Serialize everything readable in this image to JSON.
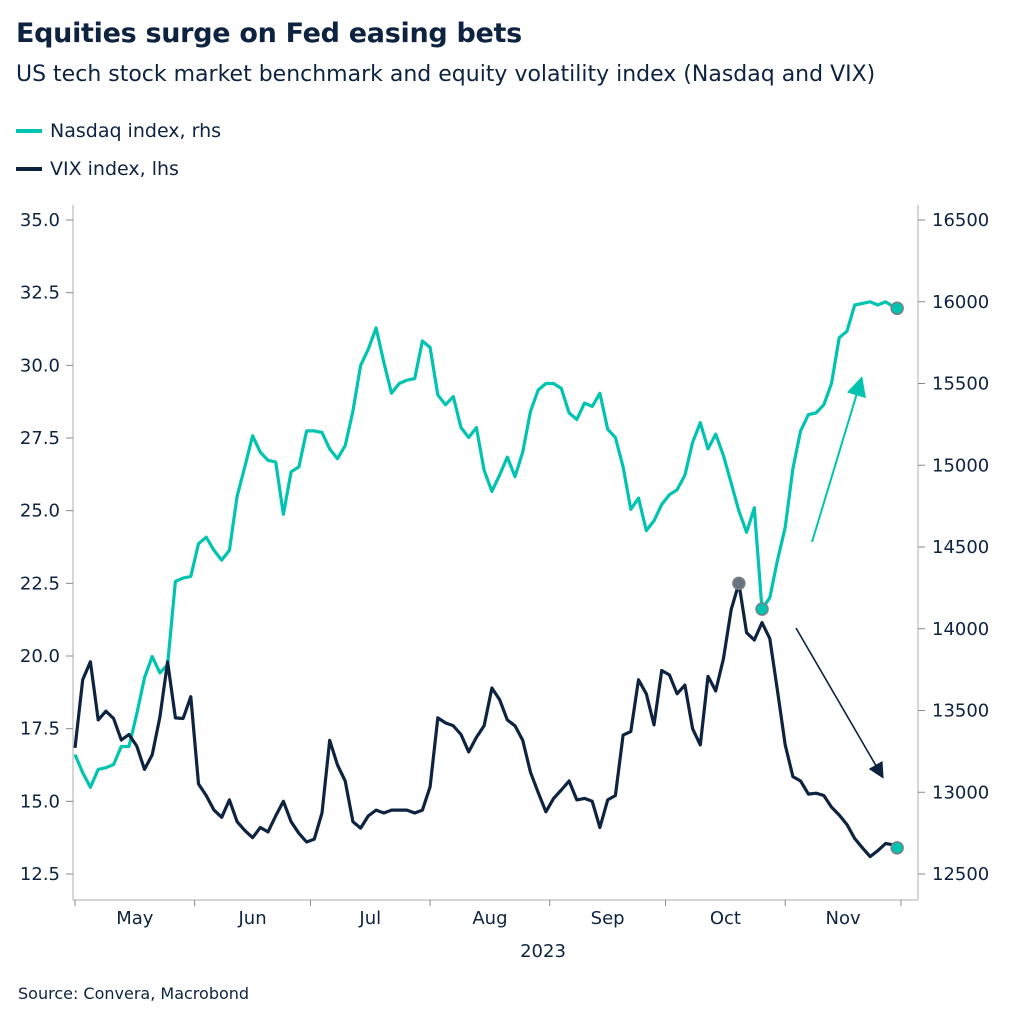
{
  "title": "Equities surge on Fed easing bets",
  "subtitle": "US tech stock market benchmark and equity volatility index (Nasdaq and VIX)",
  "source": "Source: Convera, Macrobond",
  "chart_data": {
    "type": "line",
    "title": "Equities surge on Fed easing bets",
    "subtitle": "US tech stock market benchmark and equity volatility index (Nasdaq and VIX)",
    "legend_position": "top-left",
    "grid": false,
    "x_range": [
      "2023-05-01",
      "2023-12-01"
    ],
    "x_tick_labels": [
      "May",
      "Jun",
      "Jul",
      "Aug",
      "Sep",
      "Oct",
      "Nov"
    ],
    "x_year_label": "2023",
    "left_axis": {
      "ylim": [
        12.5,
        35.0
      ],
      "ticks": [
        "12.5",
        "15.0",
        "17.5",
        "20.0",
        "22.5",
        "25.0",
        "27.5",
        "30.0",
        "32.5",
        "35.0"
      ]
    },
    "right_axis": {
      "ylim": [
        12500,
        16500
      ],
      "ticks": [
        "12500",
        "13000",
        "13500",
        "14000",
        "14500",
        "15000",
        "15500",
        "16000",
        "16500"
      ]
    },
    "x": [
      "2023-05-01",
      "2023-05-03",
      "2023-05-05",
      "2023-05-07",
      "2023-05-09",
      "2023-05-11",
      "2023-05-13",
      "2023-05-15",
      "2023-05-17",
      "2023-05-19",
      "2023-05-21",
      "2023-05-23",
      "2023-05-25",
      "2023-05-27",
      "2023-05-29",
      "2023-05-31",
      "2023-06-02",
      "2023-06-04",
      "2023-06-06",
      "2023-06-08",
      "2023-06-10",
      "2023-06-12",
      "2023-06-14",
      "2023-06-16",
      "2023-06-18",
      "2023-06-20",
      "2023-06-22",
      "2023-06-24",
      "2023-06-26",
      "2023-06-28",
      "2023-06-30",
      "2023-07-02",
      "2023-07-04",
      "2023-07-06",
      "2023-07-08",
      "2023-07-10",
      "2023-07-12",
      "2023-07-14",
      "2023-07-16",
      "2023-07-18",
      "2023-07-20",
      "2023-07-22",
      "2023-07-24",
      "2023-07-26",
      "2023-07-28",
      "2023-07-30",
      "2023-08-01",
      "2023-08-03",
      "2023-08-05",
      "2023-08-07",
      "2023-08-09",
      "2023-08-11",
      "2023-08-13",
      "2023-08-15",
      "2023-08-17",
      "2023-08-19",
      "2023-08-21",
      "2023-08-23",
      "2023-08-25",
      "2023-08-27",
      "2023-08-29",
      "2023-08-31",
      "2023-09-02",
      "2023-09-04",
      "2023-09-06",
      "2023-09-08",
      "2023-09-10",
      "2023-09-12",
      "2023-09-14",
      "2023-09-16",
      "2023-09-18",
      "2023-09-20",
      "2023-09-22",
      "2023-09-24",
      "2023-09-26",
      "2023-09-28",
      "2023-09-30",
      "2023-10-02",
      "2023-10-04",
      "2023-10-06",
      "2023-10-08",
      "2023-10-10",
      "2023-10-12",
      "2023-10-14",
      "2023-10-16",
      "2023-10-18",
      "2023-10-20",
      "2023-10-22",
      "2023-10-24",
      "2023-10-26",
      "2023-10-28",
      "2023-10-30",
      "2023-11-01",
      "2023-11-03",
      "2023-11-05",
      "2023-11-07",
      "2023-11-09",
      "2023-11-11",
      "2023-11-13",
      "2023-11-15",
      "2023-11-17",
      "2023-11-19",
      "2023-11-21",
      "2023-11-23",
      "2023-11-25",
      "2023-11-27",
      "2023-11-29",
      "2023-11-30"
    ],
    "series": [
      {
        "name": "Nasdaq index, rhs",
        "axis": "right",
        "color": "#00c4b0",
        "values": [
          13230,
          13120,
          13030,
          13140,
          13150,
          13170,
          13280,
          13280,
          13480,
          13700,
          13830,
          13730,
          13780,
          14290,
          14310,
          14320,
          14520,
          14560,
          14480,
          14420,
          14480,
          14810,
          14990,
          15180,
          15080,
          15030,
          15020,
          14700,
          14960,
          14990,
          15210,
          15210,
          15200,
          15100,
          15040,
          15120,
          15330,
          15610,
          15710,
          15840,
          15630,
          15440,
          15500,
          15520,
          15530,
          15760,
          15720,
          15430,
          15370,
          15420,
          15230,
          15170,
          15230,
          14970,
          14840,
          14940,
          15050,
          14930,
          15080,
          15330,
          15460,
          15500,
          15500,
          15470,
          15320,
          15280,
          15380,
          15360,
          15440,
          15220,
          15170,
          14990,
          14730,
          14800,
          14600,
          14660,
          14760,
          14820,
          14850,
          14940,
          15140,
          15260,
          15100,
          15190,
          15060,
          14890,
          14720,
          14590,
          14740,
          14120,
          14190,
          14420,
          14620,
          14980,
          15210,
          15310,
          15320,
          15370,
          15500,
          15780,
          15820,
          15980,
          15990,
          16000,
          15980,
          16000,
          15970,
          15960
        ]
      },
      {
        "name": "VIX index, lhs",
        "axis": "left",
        "color": "#0d2340",
        "values": [
          16.84,
          19.18,
          19.8,
          17.8,
          18.1,
          17.85,
          17.11,
          17.3,
          16.9,
          16.1,
          16.6,
          17.9,
          19.8,
          17.87,
          17.85,
          18.6,
          15.6,
          15.2,
          14.7,
          14.45,
          15.05,
          14.3,
          14.0,
          13.75,
          14.1,
          13.95,
          14.5,
          15.0,
          14.3,
          13.9,
          13.6,
          13.7,
          14.6,
          17.1,
          16.25,
          15.7,
          14.3,
          14.08,
          14.5,
          14.7,
          14.6,
          14.7,
          14.7,
          14.7,
          14.6,
          14.7,
          15.5,
          17.87,
          17.7,
          17.6,
          17.3,
          16.7,
          17.2,
          17.6,
          18.9,
          18.5,
          17.8,
          17.6,
          17.1,
          16.0,
          15.3,
          14.64,
          15.1,
          15.39,
          15.7,
          15.05,
          15.1,
          15.0,
          14.1,
          15.05,
          15.2,
          17.28,
          17.4,
          19.18,
          18.7,
          17.63,
          19.5,
          19.35,
          18.7,
          19.0,
          17.5,
          16.94,
          19.3,
          18.8,
          19.9,
          21.6,
          22.5,
          20.8,
          20.55,
          21.15,
          20.6,
          18.8,
          16.94,
          15.85,
          15.7,
          15.25,
          15.28,
          15.2,
          14.8,
          14.53,
          14.2,
          13.72,
          13.4,
          13.1,
          13.3,
          13.55,
          13.5,
          13.4
        ]
      }
    ],
    "markers": [
      {
        "series": "VIX index, lhs",
        "x": "2023-10-20",
        "y": 22.5,
        "color": "#6b7280"
      },
      {
        "series": "Nasdaq index, rhs",
        "x": "2023-10-26",
        "y": 14120,
        "color": "#00c4b0"
      },
      {
        "series": "Nasdaq index, rhs",
        "x": "2023-11-30",
        "y": 15960,
        "color": "#00c4b0"
      },
      {
        "series": "VIX index, lhs",
        "x": "2023-11-30",
        "y": 13.4,
        "color": "#00c4b0"
      }
    ]
  }
}
